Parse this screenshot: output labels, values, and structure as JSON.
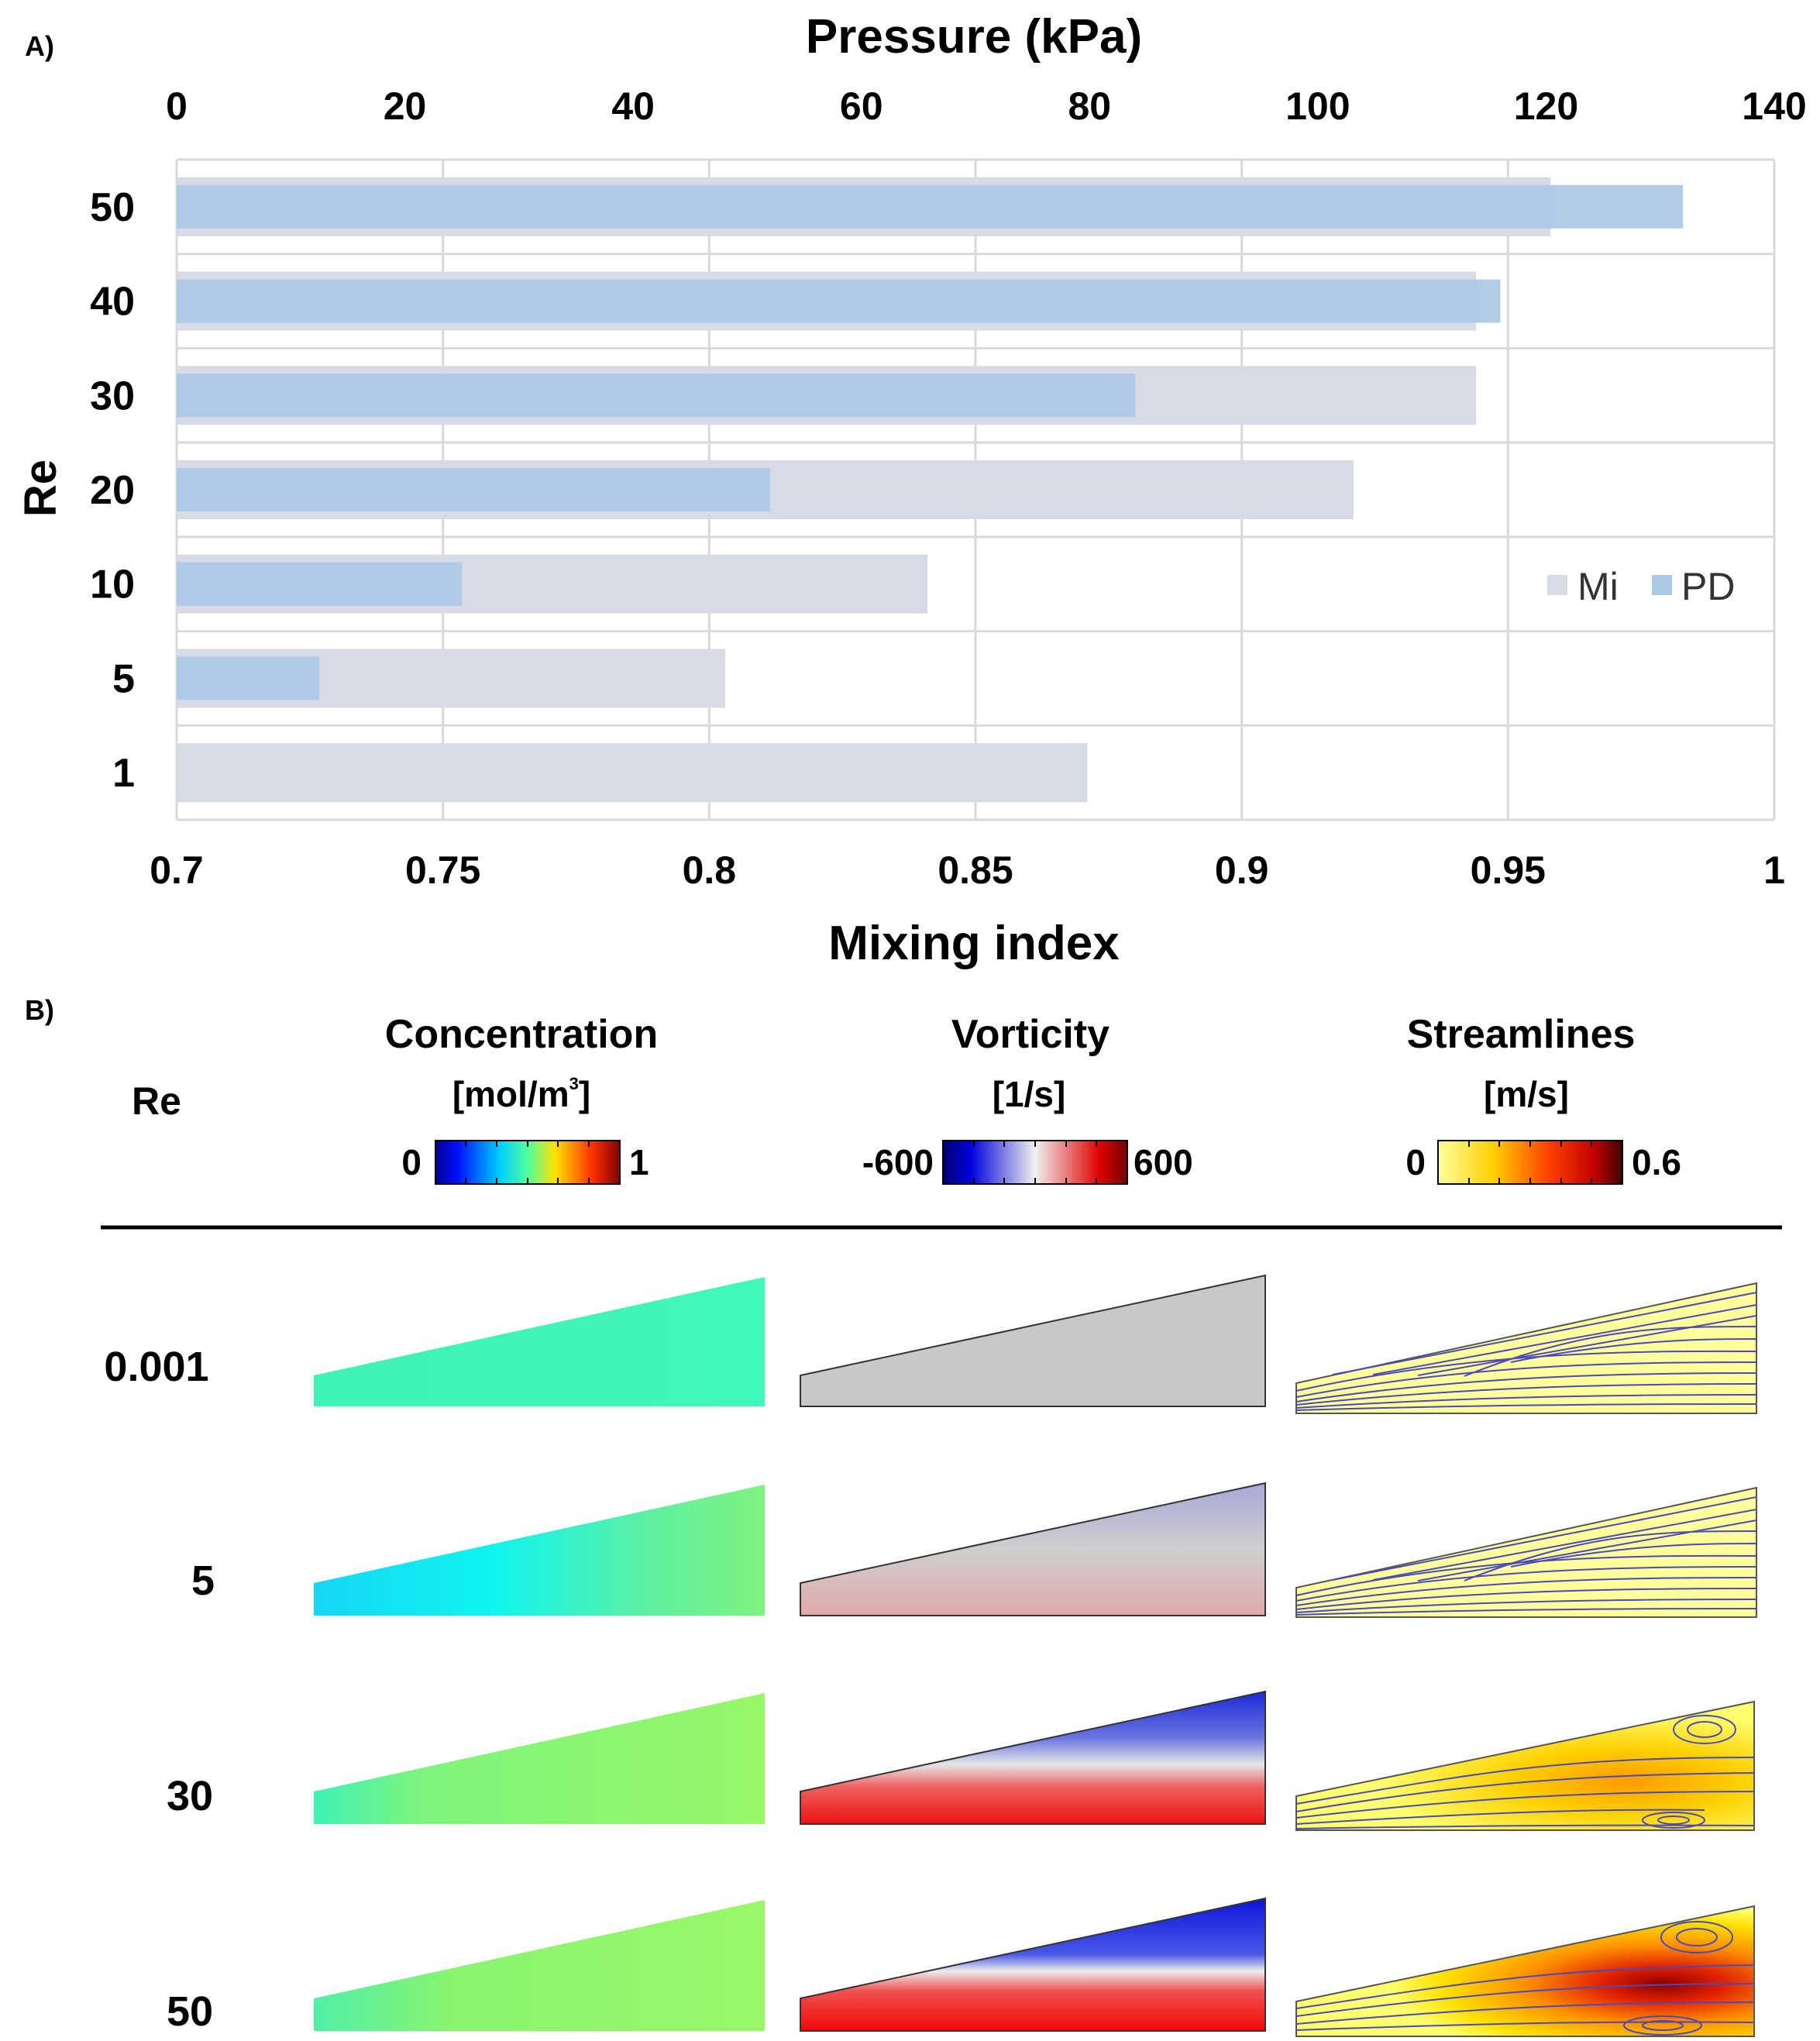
{
  "panel_a": {
    "label": "A)",
    "chart_data": {
      "type": "bar",
      "orientation": "horizontal",
      "title": "",
      "ylabel": "Re",
      "categories": [
        "50",
        "40",
        "30",
        "20",
        "10",
        "5",
        "1"
      ],
      "series": [
        {
          "name": "Mi",
          "axis": "bottom",
          "color": "#d6dbe5",
          "values": [
            0.958,
            0.944,
            0.944,
            0.921,
            0.841,
            0.803,
            0.871
          ]
        },
        {
          "name": "PD",
          "axis": "top",
          "color": "#abc8e6",
          "values": [
            132,
            116,
            84,
            52,
            25,
            12.5,
            0
          ]
        }
      ],
      "x_bottom": {
        "label": "Mixing index",
        "range": [
          0.7,
          1
        ],
        "ticks": [
          "0.7",
          "0.75",
          "0.8",
          "0.85",
          "0.9",
          "0.95",
          "1"
        ]
      },
      "x_top": {
        "label": "Pressure (kPa)",
        "range": [
          0,
          140
        ],
        "ticks": [
          "0",
          "20",
          "40",
          "60",
          "80",
          "100",
          "120",
          "140"
        ]
      },
      "grid": true,
      "legend": {
        "position": "right",
        "entries": [
          "Mi",
          "PD"
        ]
      }
    }
  },
  "panel_b": {
    "label": "B)",
    "row_header": "Re",
    "columns": [
      {
        "title": "Concentration",
        "unit_base": "[mol/m",
        "unit_sup": "3",
        "unit_end": "]",
        "scale_min": "0",
        "scale_max": "1"
      },
      {
        "title": "Vorticity",
        "unit_base": "[1/s]",
        "unit_sup": "",
        "unit_end": "",
        "scale_min": "-600",
        "scale_max": "600"
      },
      {
        "title": "Streamlines",
        "unit_base": "[m/s]",
        "unit_sup": "",
        "unit_end": "",
        "scale_min": "0",
        "scale_max": "0.6"
      }
    ],
    "rows": [
      "0.001",
      "5",
      "30",
      "50"
    ],
    "colors": {
      "concentration": [
        "#3ff2b5",
        "#2ae0f2",
        "#72f27c",
        "#92f56c"
      ],
      "vorticity_neutral": "#c8c8c8",
      "vorticity_pos": "#ef1010",
      "vorticity_neg": "#1c22dd",
      "stream_low": "#ffff99",
      "stream_high": "#6e0000",
      "streamline": "#4a4ab8"
    }
  }
}
